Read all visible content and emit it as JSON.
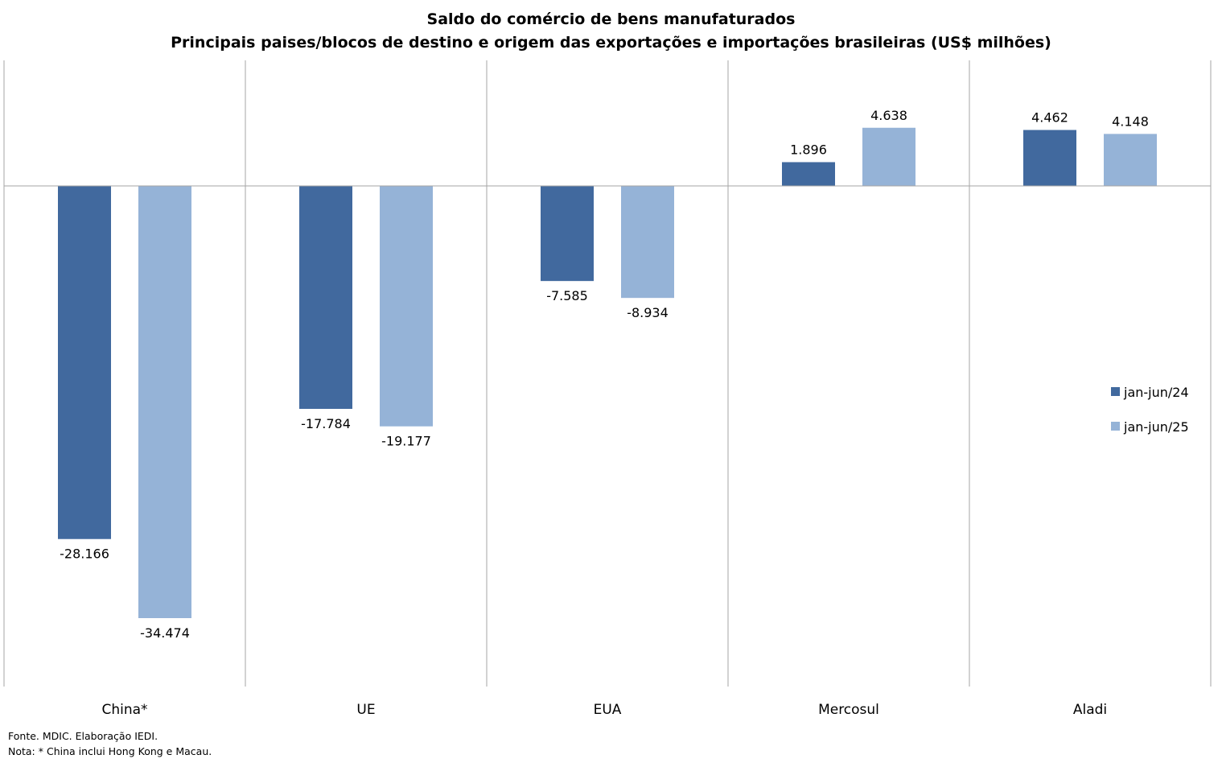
{
  "chart_data": {
    "type": "bar",
    "title": "Saldo do comércio de bens manufaturados",
    "subtitle": "Principais paises/blocos de destino e origem das exportações e importações brasileiras  (US$ milhões)",
    "categories": [
      "China*",
      "UE",
      "EUA",
      "Mercosul",
      "Aladi"
    ],
    "series": [
      {
        "name": "jan-jun/24",
        "color": "#41699e",
        "values": [
          -28166,
          -17784,
          -7585,
          1896,
          4462
        ],
        "labels": [
          "-28.166",
          "-17.784",
          "-7.585",
          "1.896",
          "4.462"
        ]
      },
      {
        "name": "jan-jun/25",
        "color": "#95b3d7",
        "values": [
          -34474,
          -19177,
          -8934,
          4638,
          4148
        ],
        "labels": [
          "-34.474",
          "-19.177",
          "-8.934",
          "4.638",
          "4.148"
        ]
      }
    ],
    "ylim": [
      -40000,
      10000
    ],
    "grid": "vertical category separators",
    "legend_position": "right"
  },
  "notes": {
    "source": "Fonte. MDIC. Elaboração IEDI.",
    "note": "Nota: * China inclui Hong Kong e Macau."
  }
}
